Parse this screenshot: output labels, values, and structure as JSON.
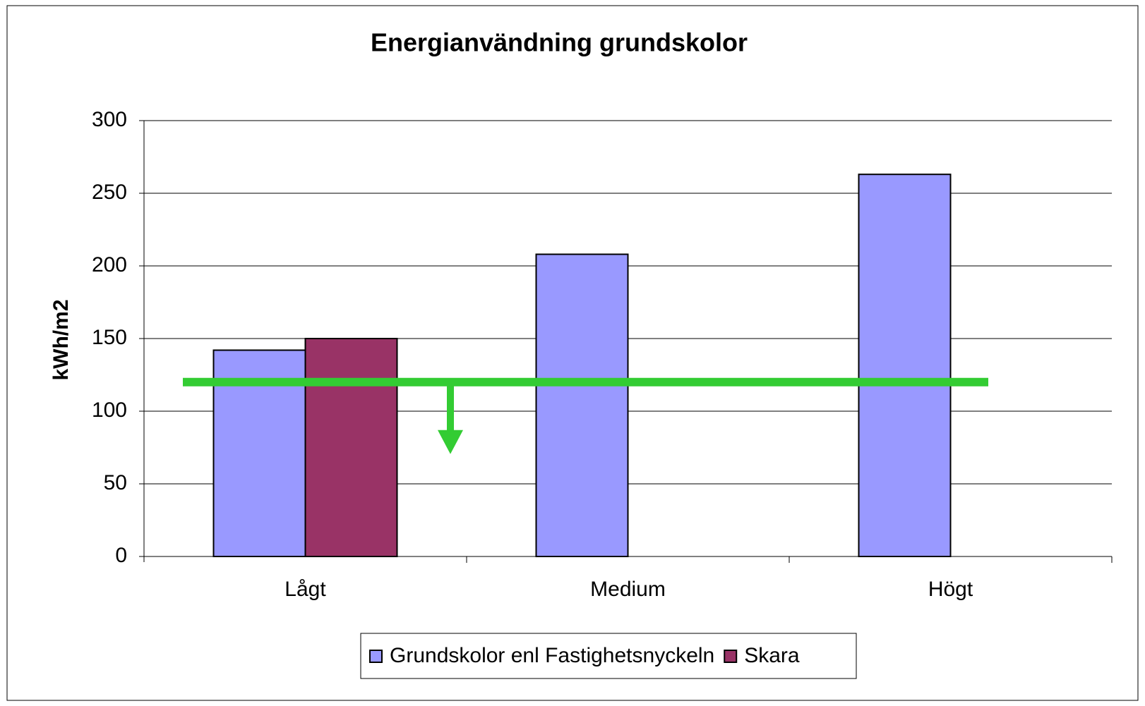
{
  "chart_data": {
    "type": "bar",
    "title": "Energianvändning grundskolor",
    "y_label": "kWh/m2",
    "categories": [
      "Lågt",
      "Medium",
      "Högt"
    ],
    "series": [
      {
        "name": "Grundskolor enl Fastighetsnyckeln",
        "color": "#9999ff",
        "values": [
          142,
          208,
          263
        ]
      },
      {
        "name": "Skara",
        "color": "#993366",
        "values": [
          150,
          null,
          null
        ]
      }
    ],
    "target": {
      "value": 120,
      "color": "#33cc33"
    },
    "ylim": [
      0,
      300
    ],
    "yticks": [
      0,
      50,
      100,
      150,
      200,
      250,
      300
    ],
    "grid": true
  }
}
